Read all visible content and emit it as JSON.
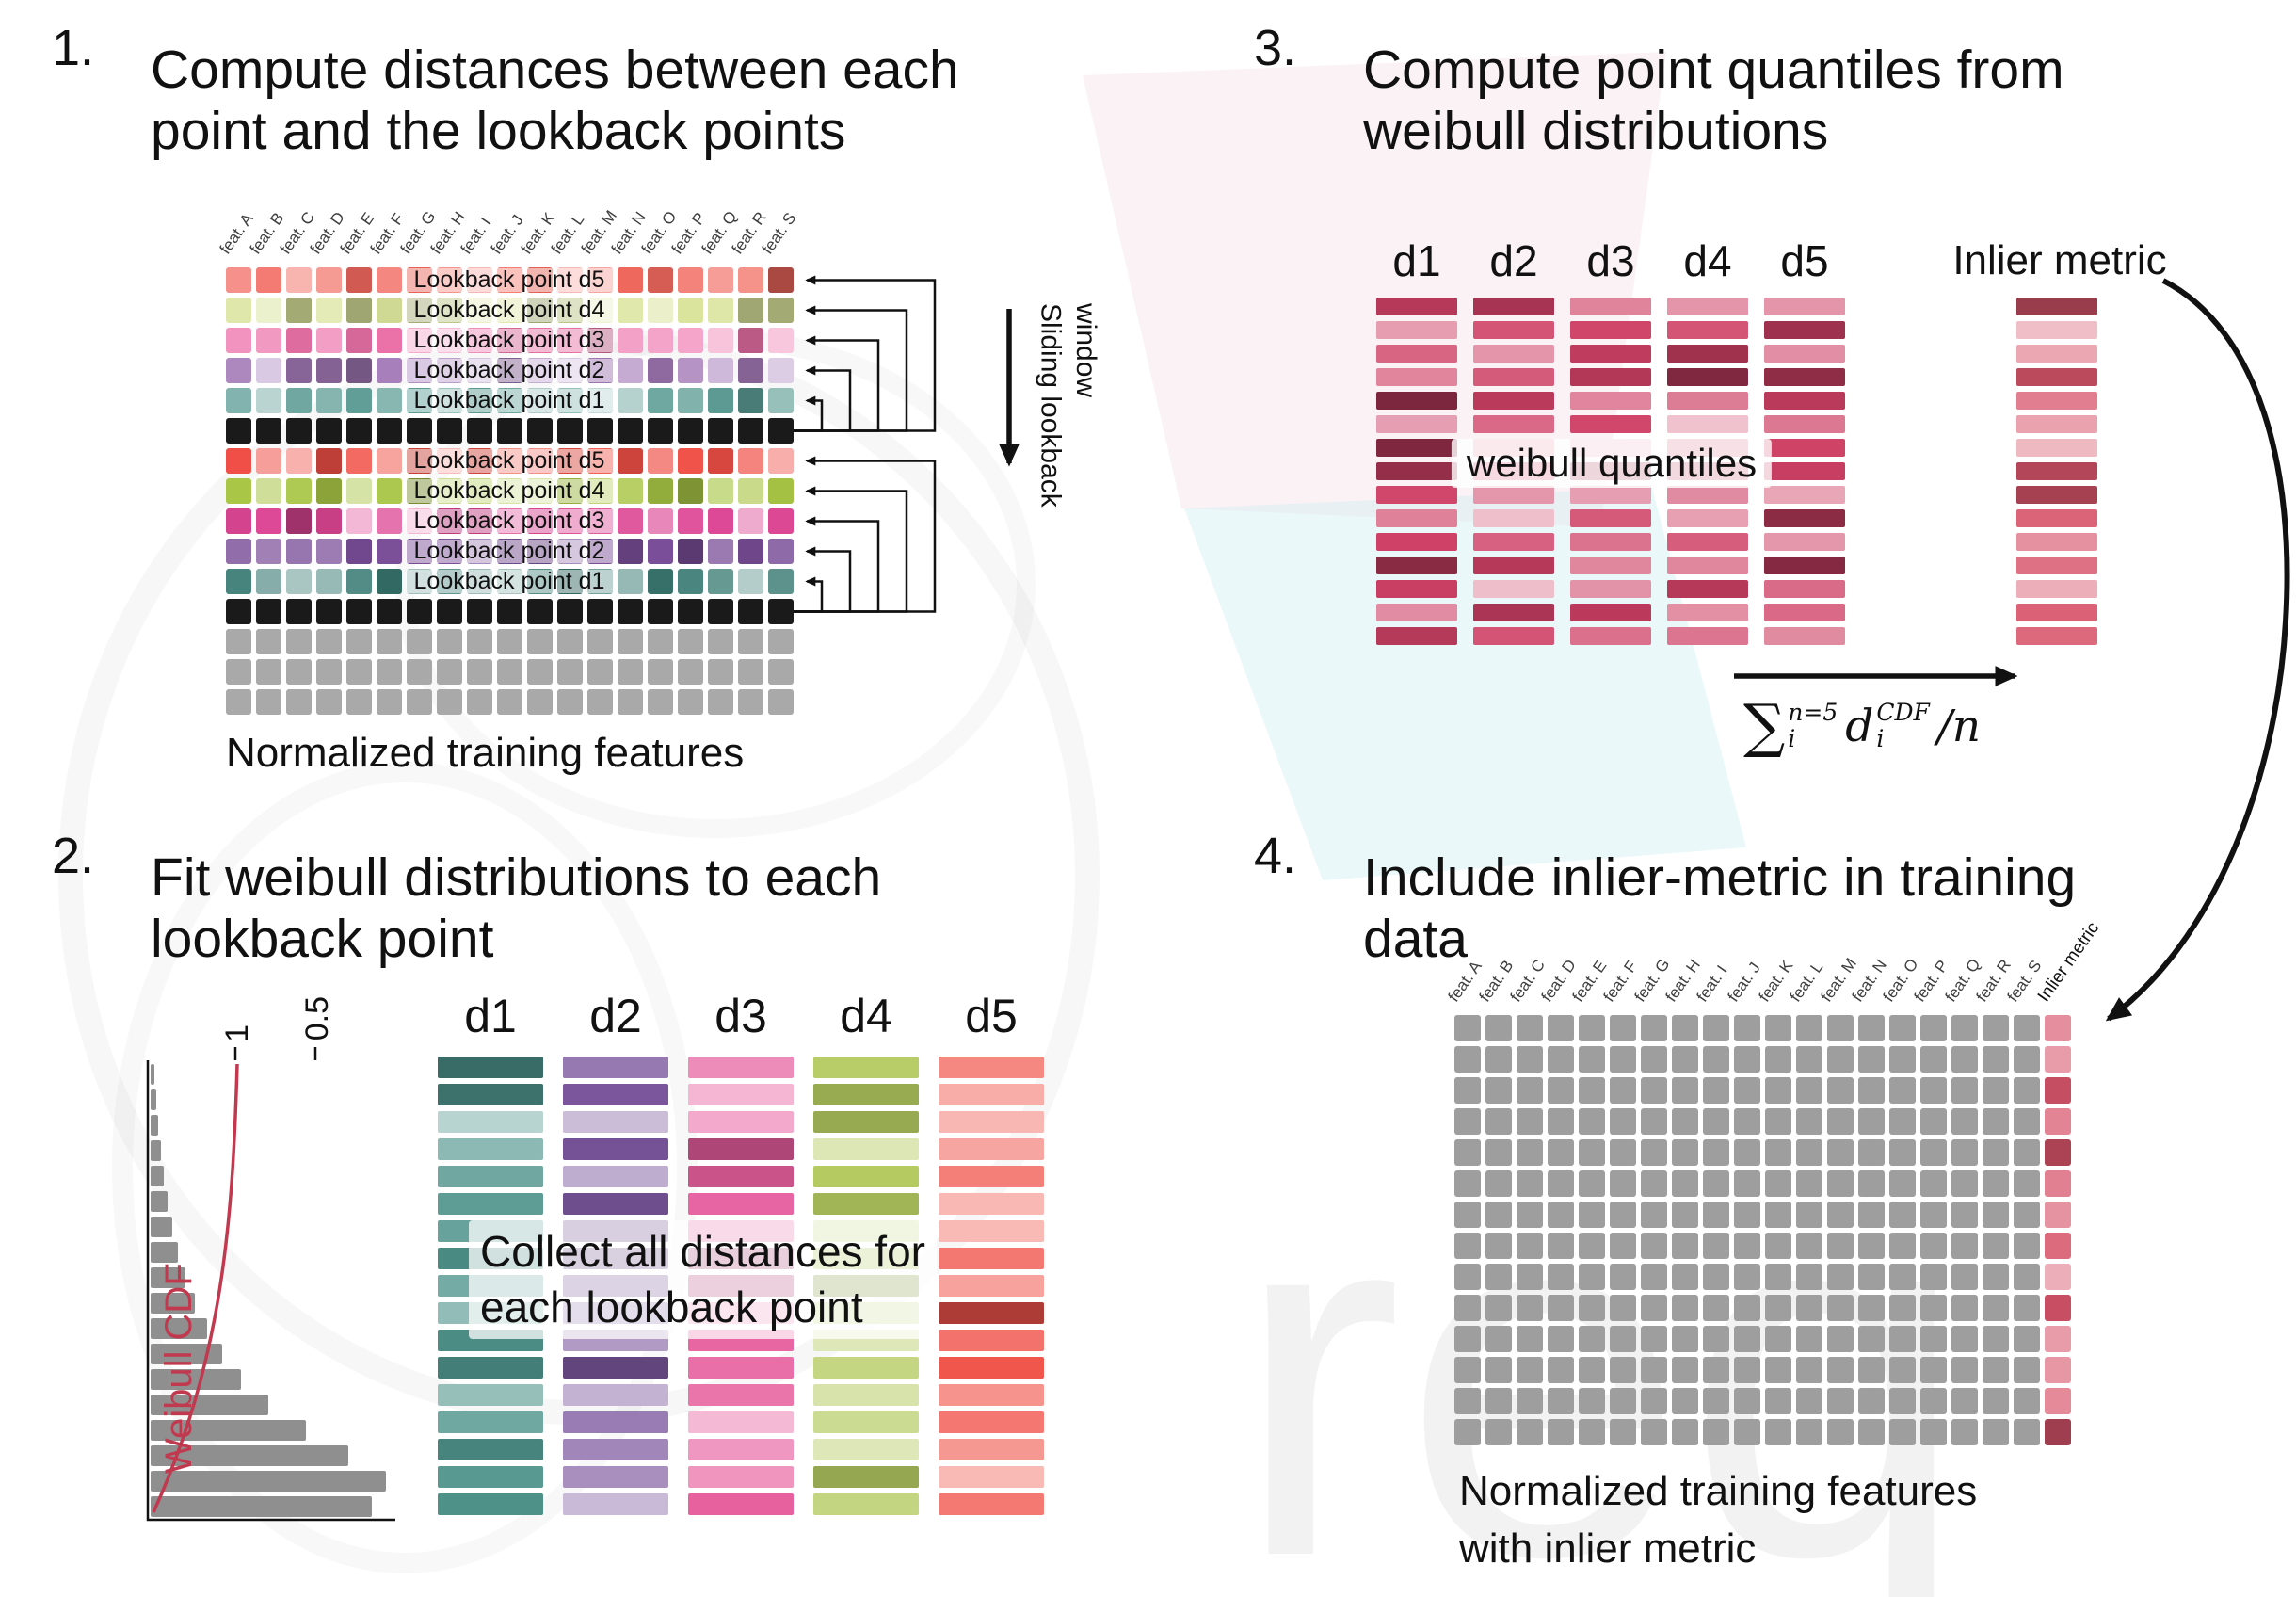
{
  "watermark": {
    "text": "req"
  },
  "p1": {
    "number": "1.",
    "title": [
      "Compute distances between each",
      "point and the lookback points"
    ],
    "features": [
      "feat. A",
      "feat. B",
      "feat. C",
      "feat. D",
      "feat. E",
      "feat. F",
      "feat. G",
      "feat. H",
      "feat. I",
      "feat. J",
      "feat. K",
      "feat. L",
      "feat. M",
      "feat. N",
      "feat. O",
      "feat. P",
      "feat. Q",
      "feat. R",
      "feat. S"
    ],
    "caption": "Normalized training features",
    "sliding_label": "Sliding lookback window",
    "black_color": "#1a1a1a",
    "gray_color": "#a9a9a9",
    "groups": [
      {
        "rows": [
          {
            "label": "Lookback point d5",
            "color": "#f2695f"
          },
          {
            "label": "Lookback point d4",
            "color": "#dbe49c"
          },
          {
            "label": "Lookback point d3",
            "color": "#ee74ab"
          },
          {
            "label": "Lookback point d2",
            "color": "#a47ab8"
          },
          {
            "label": "Lookback point d1",
            "color": "#5e9d96"
          }
        ]
      },
      {
        "rows": [
          {
            "label": "Lookback point d5",
            "color": "#f05047"
          },
          {
            "label": "Lookback point d4",
            "color": "#a9c646"
          },
          {
            "label": "Lookback point d3",
            "color": "#dd4694"
          },
          {
            "label": "Lookback point d2",
            "color": "#7b4f99"
          },
          {
            "label": "Lookback point d1",
            "color": "#3d7d76"
          }
        ]
      }
    ]
  },
  "p2": {
    "number": "2.",
    "title": [
      "Fit weibull distributions to each",
      "lookback point"
    ],
    "chart": {
      "ylabel": "Weibull CDF",
      "ticks": [
        "1",
        "0.5"
      ],
      "hist": [
        4,
        6,
        8,
        11,
        14,
        18,
        23,
        29,
        37,
        47,
        60,
        76,
        96,
        125,
        165,
        210,
        250,
        235
      ],
      "cdf_color": "#c0394f",
      "bar_color": "#8f8f8f"
    },
    "columns": [
      {
        "label": "d1",
        "color": "#4f948c"
      },
      {
        "label": "d2",
        "color": "#7d589f"
      },
      {
        "label": "d3",
        "color": "#e75f9e"
      },
      {
        "label": "d4",
        "color": "#b5cb61"
      },
      {
        "label": "d5",
        "color": "#f1544b"
      }
    ],
    "overlay": [
      "Collect all distances for",
      "each lookback point"
    ]
  },
  "p3": {
    "number": "3.",
    "title": [
      "Compute point quantiles from",
      "weibull distributions"
    ],
    "columns": [
      "d1",
      "d2",
      "d3",
      "d4",
      "d5"
    ],
    "quantile_color": "#cf4166",
    "overlay": "weibull quantiles",
    "inlier_label": "Inlier metric",
    "inlier_color": "#d8556b",
    "formula": {
      "sum": "∑",
      "sum_sup": "n=5",
      "sum_sub": "i",
      "var": "d",
      "var_sup": "CDF",
      "var_sub": "i",
      "tail": "/n"
    }
  },
  "p4": {
    "number": "4.",
    "title": [
      "Include inlier-metric in training",
      "data"
    ],
    "features": [
      "feat. A",
      "feat. B",
      "feat. C",
      "feat. D",
      "feat. E",
      "feat. F",
      "feat. G",
      "feat. H",
      "feat. I",
      "feat. J",
      "feat. K",
      "feat. L",
      "feat. M",
      "feat. N",
      "feat. O",
      "feat. P",
      "feat. Q",
      "feat. R",
      "feat. S"
    ],
    "inlier_header": "Inlier metric",
    "cell_color": "#9e9e9e",
    "inlier_color": "#d8556b",
    "caption": [
      "Normalized training features",
      "with inlier metric"
    ]
  }
}
